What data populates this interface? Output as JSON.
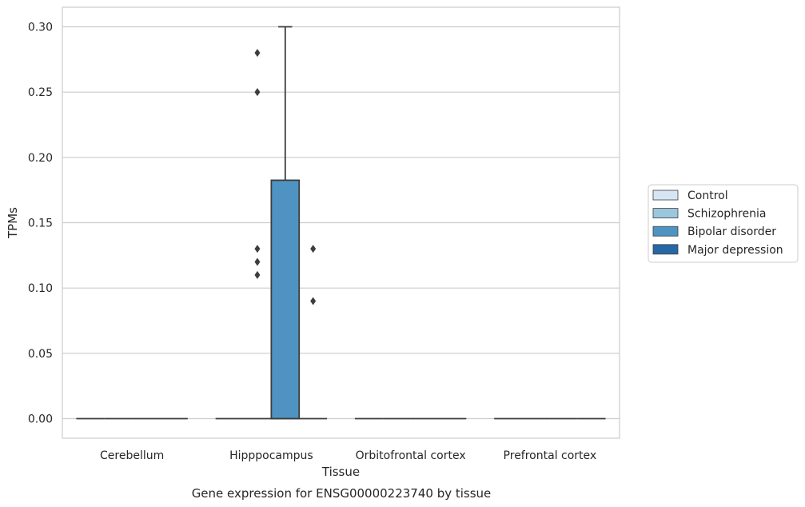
{
  "chart_data": {
    "type": "box",
    "title": "",
    "caption": "Gene expression for ENSG00000223740 by tissue",
    "xlabel": "Tissue",
    "ylabel": "TPMs",
    "ylim": [
      -0.015,
      0.315
    ],
    "yticks": [
      0.0,
      0.05,
      0.1,
      0.15,
      0.2,
      0.25,
      0.3
    ],
    "ytick_labels": [
      "0.00",
      "0.05",
      "0.10",
      "0.15",
      "0.20",
      "0.25",
      "0.30"
    ],
    "grid": true,
    "legend_position": "right",
    "categories": [
      "Cerebellum",
      "Hipppocampus",
      "Orbitofrontal cortex",
      "Prefrontal cortex"
    ],
    "series": [
      {
        "name": "Control",
        "color": "#d6e5f4",
        "boxes": [
          {
            "q1": 0,
            "median": 0,
            "q3": 0,
            "whisker_low": 0,
            "whisker_high": 0,
            "outliers": []
          },
          {
            "q1": 0,
            "median": 0,
            "q3": 0,
            "whisker_low": 0,
            "whisker_high": 0,
            "outliers": []
          },
          {
            "q1": 0,
            "median": 0,
            "q3": 0,
            "whisker_low": 0,
            "whisker_high": 0,
            "outliers": []
          },
          {
            "q1": 0,
            "median": 0,
            "q3": 0,
            "whisker_low": 0,
            "whisker_high": 0,
            "outliers": []
          }
        ]
      },
      {
        "name": "Schizophrenia",
        "color": "#9ac6de",
        "boxes": [
          {
            "q1": 0,
            "median": 0,
            "q3": 0,
            "whisker_low": 0,
            "whisker_high": 0,
            "outliers": []
          },
          {
            "q1": 0,
            "median": 0,
            "q3": 0,
            "whisker_low": 0,
            "whisker_high": 0,
            "outliers": [
              0.28,
              0.25,
              0.13,
              0.12,
              0.11
            ]
          },
          {
            "q1": 0,
            "median": 0,
            "q3": 0,
            "whisker_low": 0,
            "whisker_high": 0,
            "outliers": []
          },
          {
            "q1": 0,
            "median": 0,
            "q3": 0,
            "whisker_low": 0,
            "whisker_high": 0,
            "outliers": []
          }
        ]
      },
      {
        "name": "Bipolar disorder",
        "color": "#4f93c3",
        "boxes": [
          {
            "q1": 0,
            "median": 0,
            "q3": 0,
            "whisker_low": 0,
            "whisker_high": 0,
            "outliers": []
          },
          {
            "q1": 0,
            "median": 0,
            "q3": 0.1825,
            "whisker_low": 0,
            "whisker_high": 0.3,
            "outliers": []
          },
          {
            "q1": 0,
            "median": 0,
            "q3": 0,
            "whisker_low": 0,
            "whisker_high": 0,
            "outliers": []
          },
          {
            "q1": 0,
            "median": 0,
            "q3": 0,
            "whisker_low": 0,
            "whisker_high": 0,
            "outliers": []
          }
        ]
      },
      {
        "name": "Major depression",
        "color": "#2767a6",
        "boxes": [
          {
            "q1": 0,
            "median": 0,
            "q3": 0,
            "whisker_low": 0,
            "whisker_high": 0,
            "outliers": []
          },
          {
            "q1": 0,
            "median": 0,
            "q3": 0,
            "whisker_low": 0,
            "whisker_high": 0,
            "outliers": [
              0.13,
              0.09
            ]
          },
          {
            "q1": 0,
            "median": 0,
            "q3": 0,
            "whisker_low": 0,
            "whisker_high": 0,
            "outliers": []
          },
          {
            "q1": 0,
            "median": 0,
            "q3": 0,
            "whisker_low": 0,
            "whisker_high": 0,
            "outliers": []
          }
        ]
      }
    ]
  }
}
